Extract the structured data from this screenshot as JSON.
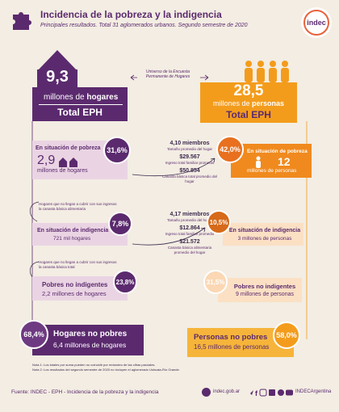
{
  "header": {
    "title": "Incidencia de la pobreza y la indigencia",
    "subtitle": "Principales resultados. Total 31 aglomerados urbanos. Segundo semestre de 2020",
    "logo": "indec"
  },
  "hogares_total": {
    "value": "9,3",
    "label_prefix": "millones de ",
    "label_bold": "hogares",
    "total": "Total EPH"
  },
  "personas_total": {
    "value": "28,5",
    "label_prefix": "millones de ",
    "label_bold": "personas",
    "total": "Total EPH"
  },
  "universe_note": "Universo de la Encuesta Permanente de Hogares",
  "pobreza": {
    "hogares_label": "En situación de pobreza",
    "hogares_value": "2,9",
    "hogares_unit": "millones de hogares",
    "hogares_pct": "31,6%",
    "members": "4,10 miembros",
    "members_desc": "Tamaño promedio del hogar",
    "income": "$29.567",
    "income_desc": "Ingreso total familiar promedio",
    "canasta": "$50.854",
    "canasta_desc": "Canasta básica total promedio del hogar",
    "personas_pct": "42,0%",
    "personas_label": "En situación de pobreza",
    "personas_value": "12",
    "personas_unit": "millones de personas"
  },
  "note_indigencia": "Hogares que no llegan a cubrir con sus ingresos la canasta básica alimentaria",
  "indigencia": {
    "hogares_pct": "7,8%",
    "hogares_label": "En situación de indigencia",
    "hogares_unit": "721 mil hogares",
    "members": "4,17 miembros",
    "members_desc": "Tamaño promedio del hogar",
    "income": "$12.864",
    "income_desc": "Ingreso total familiar promedio",
    "canasta": "$21.572",
    "canasta_desc": "Canasta básica alimentaria promedio del hogar",
    "personas_pct": "10,5%",
    "personas_label": "En situación de indigencia",
    "personas_unit": "3 millones de personas"
  },
  "note_pobres": "Hogares que no llegan a cubrir con sus ingresos la canasta básica total",
  "pobres_no_indigentes": {
    "hogares_label": "Pobres no indigentes",
    "hogares_unit": "2,2 millones de hogares",
    "hogares_pct": "23,8%",
    "personas_pct": "31,5%",
    "personas_label": "Pobres no indigentes",
    "personas_unit": "9 millones de personas"
  },
  "no_pobres": {
    "hogares_pct": "68,4%",
    "hogares_label": "Hogares no pobres",
    "hogares_unit": "6,4 millones de hogares",
    "personas_label": "Personas no pobres",
    "personas_unit": "16,5 millones de personas",
    "personas_pct": "58,0%"
  },
  "notes": [
    "Nota 1: Los totales por suma pueden no coincidir por redondeo de las cifras parciales.",
    "Nota 2: Los resultados del segundo semestre de 2020 no incluyen el aglomerado Ushuaia-Río Grande."
  ],
  "footer": {
    "source": "Fuente: INDEC - EPH - Incidencia de la pobreza y la indigencia",
    "web": "indec.gob.ar",
    "handle": "INDECArgentina"
  },
  "colors": {
    "purple": "#5b2a6e",
    "orange": "#f39c1c",
    "pink": "#ead4e3",
    "light_orange": "#fbe0c4",
    "background": "#f3ede3"
  }
}
